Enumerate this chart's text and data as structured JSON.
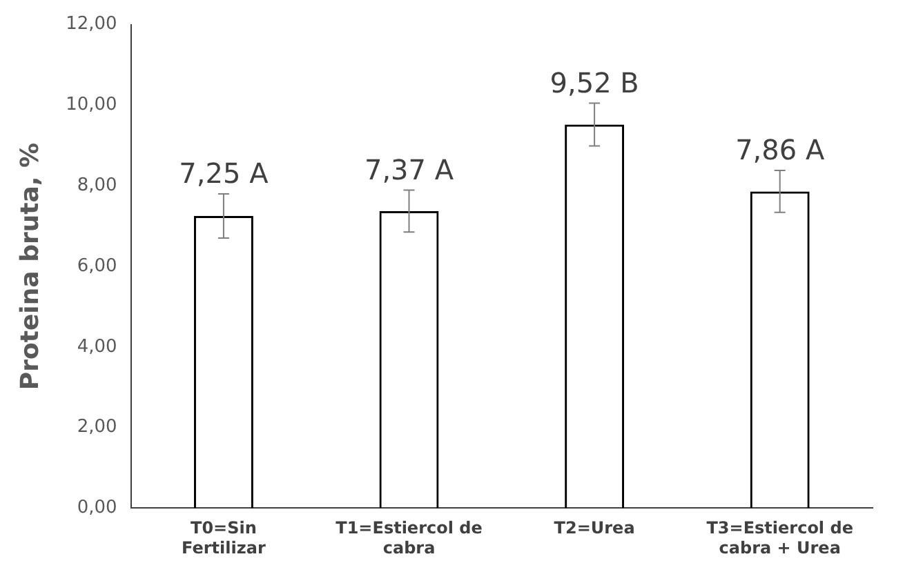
{
  "chart_data": {
    "type": "bar",
    "ylabel": "Proteina bruta, %",
    "categories": [
      "T0=Sin Fertilizar",
      "T1=Estiercol de cabra",
      "T2=Urea",
      "T3=Estiercol de cabra + Urea"
    ],
    "values": [
      7.25,
      7.37,
      9.52,
      7.86
    ],
    "errors": [
      0.55,
      0.52,
      0.53,
      0.52
    ],
    "value_labels": [
      "7,25 A",
      "7,37 A",
      "9,52 B",
      "7,86 A"
    ],
    "color": "#000000",
    "ylim": [
      0,
      12
    ],
    "yticks": [
      {
        "value": 0,
        "label": "0,00"
      },
      {
        "value": 2,
        "label": "2,00"
      },
      {
        "value": 4,
        "label": "4,00"
      },
      {
        "value": 6,
        "label": "6,00"
      },
      {
        "value": 8,
        "label": "8,00"
      },
      {
        "value": 10,
        "label": "10,00"
      },
      {
        "value": 12,
        "label": "12,00"
      }
    ],
    "grid": false,
    "legend": false
  }
}
